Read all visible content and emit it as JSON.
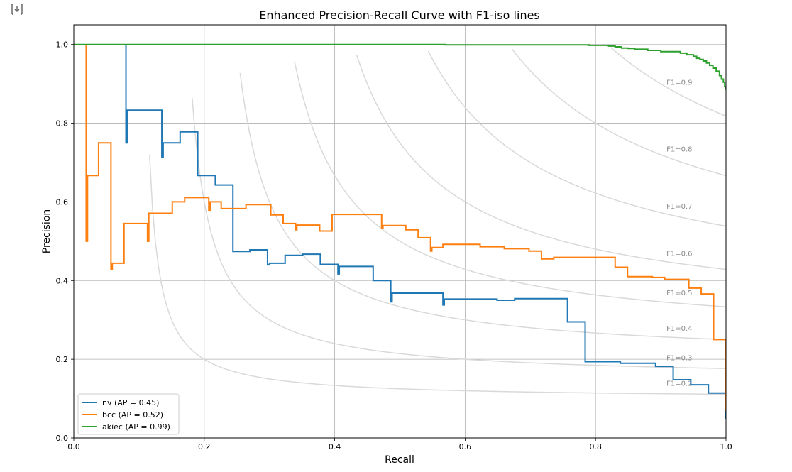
{
  "cell_output_icon": "output-expand-icon",
  "chart_data": {
    "type": "line",
    "title": "Enhanced Precision-Recall Curve with F1-iso lines",
    "xlabel": "Recall",
    "ylabel": "Precision",
    "xlim": [
      0.0,
      1.0
    ],
    "ylim": [
      0.0,
      1.05
    ],
    "xticks": [
      "0.0",
      "0.2",
      "0.4",
      "0.6",
      "0.8",
      "1.0"
    ],
    "yticks": [
      "0.0",
      "0.2",
      "0.4",
      "0.6",
      "0.8",
      "1.0"
    ],
    "grid": true,
    "legend_position": "lower-left",
    "iso_f1": {
      "color": "#d9d9d9",
      "label_x": 0.9,
      "lines": [
        {
          "f1": 0.2,
          "label": "F1=0.2",
          "label_y": 0.14
        },
        {
          "f1": 0.3,
          "label": "F1=0.3",
          "label_y": 0.205
        },
        {
          "f1": 0.4,
          "label": "F1=0.4",
          "label_y": 0.28
        },
        {
          "f1": 0.5,
          "label": "F1=0.5",
          "label_y": 0.37
        },
        {
          "f1": 0.6,
          "label": "F1=0.6",
          "label_y": 0.47
        },
        {
          "f1": 0.7,
          "label": "F1=0.7",
          "label_y": 0.59
        },
        {
          "f1": 0.8,
          "label": "F1=0.8",
          "label_y": 0.735
        },
        {
          "f1": 0.9,
          "label": "F1=0.9",
          "label_y": 0.905
        }
      ]
    },
    "series": [
      {
        "name": "nv (AP = 0.45)",
        "color": "#1f77b4",
        "x": [
          0.08,
          0.08,
          0.082,
          0.082,
          0.135,
          0.135,
          0.137,
          0.137,
          0.163,
          0.163,
          0.19,
          0.19,
          0.217,
          0.217,
          0.244,
          0.244,
          0.27,
          0.27,
          0.297,
          0.297,
          0.3,
          0.3,
          0.324,
          0.324,
          0.351,
          0.351,
          0.378,
          0.378,
          0.405,
          0.405,
          0.407,
          0.407,
          0.459,
          0.459,
          0.486,
          0.486,
          0.488,
          0.488,
          0.566,
          0.566,
          0.568,
          0.568,
          0.649,
          0.649,
          0.676,
          0.676,
          0.757,
          0.757,
          0.784,
          0.784,
          0.838,
          0.838,
          0.892,
          0.892,
          0.919,
          0.919,
          0.946,
          0.946,
          0.973,
          0.973,
          1.0,
          1.0
        ],
        "y": [
          1.0,
          0.75,
          0.75,
          0.833,
          0.833,
          0.714,
          0.714,
          0.75,
          0.75,
          0.778,
          0.778,
          0.667,
          0.667,
          0.643,
          0.643,
          0.474,
          0.474,
          0.478,
          0.478,
          0.44,
          0.44,
          0.444,
          0.444,
          0.464,
          0.464,
          0.467,
          0.467,
          0.441,
          0.441,
          0.417,
          0.417,
          0.436,
          0.436,
          0.4,
          0.4,
          0.346,
          0.346,
          0.368,
          0.368,
          0.338,
          0.338,
          0.353,
          0.353,
          0.35,
          0.35,
          0.354,
          0.354,
          0.295,
          0.295,
          0.194,
          0.194,
          0.19,
          0.19,
          0.182,
          0.182,
          0.148,
          0.148,
          0.135,
          0.135,
          0.114,
          0.114,
          0.048
        ]
      },
      {
        "name": "bcc (AP = 0.52)",
        "color": "#ff7f0e",
        "x": [
          0.019,
          0.019,
          0.021,
          0.021,
          0.038,
          0.038,
          0.057,
          0.057,
          0.059,
          0.059,
          0.077,
          0.077,
          0.113,
          0.113,
          0.115,
          0.115,
          0.151,
          0.151,
          0.17,
          0.17,
          0.207,
          0.207,
          0.209,
          0.209,
          0.226,
          0.226,
          0.264,
          0.264,
          0.302,
          0.302,
          0.321,
          0.321,
          0.34,
          0.34,
          0.342,
          0.342,
          0.377,
          0.377,
          0.396,
          0.396,
          0.472,
          0.472,
          0.474,
          0.474,
          0.509,
          0.509,
          0.528,
          0.528,
          0.547,
          0.547,
          0.549,
          0.549,
          0.566,
          0.566,
          0.623,
          0.623,
          0.66,
          0.66,
          0.698,
          0.698,
          0.717,
          0.717,
          0.736,
          0.736,
          0.83,
          0.83,
          0.849,
          0.849,
          0.887,
          0.887,
          0.906,
          0.906,
          0.943,
          0.943,
          0.962,
          0.962,
          0.981,
          0.981,
          1.0,
          1.0
        ],
        "y": [
          1.0,
          0.5,
          0.5,
          0.667,
          0.667,
          0.75,
          0.75,
          0.429,
          0.429,
          0.444,
          0.444,
          0.545,
          0.545,
          0.5,
          0.5,
          0.571,
          0.571,
          0.6,
          0.6,
          0.611,
          0.611,
          0.579,
          0.579,
          0.6,
          0.6,
          0.583,
          0.583,
          0.593,
          0.593,
          0.567,
          0.567,
          0.545,
          0.545,
          0.529,
          0.529,
          0.541,
          0.541,
          0.526,
          0.526,
          0.568,
          0.568,
          0.534,
          0.534,
          0.54,
          0.54,
          0.529,
          0.529,
          0.509,
          0.509,
          0.475,
          0.475,
          0.484,
          0.484,
          0.492,
          0.492,
          0.486,
          0.486,
          0.481,
          0.481,
          0.475,
          0.475,
          0.455,
          0.455,
          0.459,
          0.459,
          0.434,
          0.434,
          0.41,
          0.41,
          0.408,
          0.408,
          0.403,
          0.403,
          0.381,
          0.381,
          0.366,
          0.366,
          0.25,
          0.25,
          0.07
        ]
      },
      {
        "name": "akiec (AP = 0.99)",
        "color": "#2ca02c",
        "x": [
          0.0,
          0.57,
          0.57,
          0.79,
          0.79,
          0.82,
          0.82,
          0.83,
          0.83,
          0.84,
          0.84,
          0.85,
          0.85,
          0.86,
          0.86,
          0.88,
          0.88,
          0.9,
          0.9,
          0.93,
          0.93,
          0.94,
          0.94,
          0.95,
          0.95,
          0.955,
          0.955,
          0.96,
          0.96,
          0.965,
          0.965,
          0.97,
          0.97,
          0.975,
          0.975,
          0.98,
          0.98,
          0.985,
          0.985,
          0.99,
          0.99,
          0.993,
          0.993,
          0.996,
          0.996,
          0.998,
          0.998,
          1.0,
          1.0
        ],
        "y": [
          1.0,
          1.0,
          0.999,
          0.999,
          0.998,
          0.998,
          0.996,
          0.996,
          0.994,
          0.994,
          0.991,
          0.991,
          0.99,
          0.99,
          0.988,
          0.988,
          0.985,
          0.985,
          0.982,
          0.982,
          0.978,
          0.978,
          0.974,
          0.974,
          0.97,
          0.97,
          0.965,
          0.965,
          0.962,
          0.962,
          0.958,
          0.958,
          0.953,
          0.953,
          0.947,
          0.947,
          0.94,
          0.94,
          0.932,
          0.932,
          0.921,
          0.921,
          0.912,
          0.912,
          0.904,
          0.904,
          0.893,
          0.893,
          0.885
        ]
      }
    ]
  }
}
